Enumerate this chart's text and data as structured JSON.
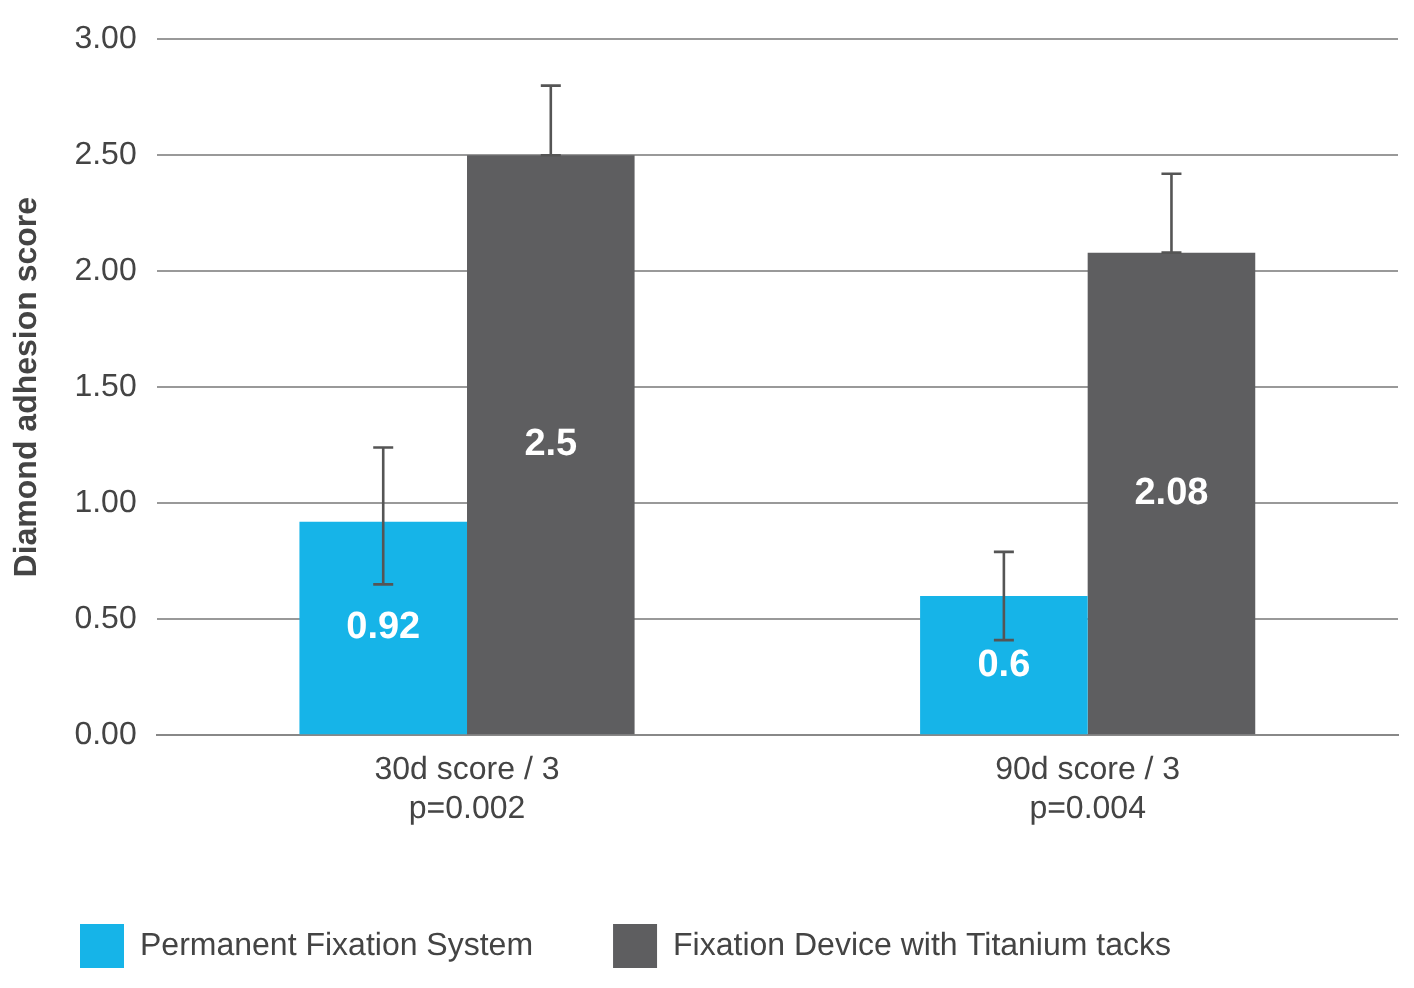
{
  "chart_data": {
    "type": "bar",
    "ylabel": "Diamond adhesion score",
    "categories": [
      "30d score / 3\np=0.002",
      "90d score / 3\np=0.004"
    ],
    "series": [
      {
        "name": "Permanent Fixation System",
        "color": "#16b4e8",
        "values": [
          0.92,
          0.6
        ],
        "errors": [
          [
            0.65,
            1.24
          ],
          [
            0.41,
            0.79
          ]
        ]
      },
      {
        "name": "Fixation Device with Titanium tacks",
        "color": "#5e5e60",
        "values": [
          2.5,
          2.08
        ],
        "errors": [
          [
            2.5,
            2.8
          ],
          [
            2.08,
            2.42
          ]
        ]
      }
    ],
    "ylim": [
      0,
      3
    ],
    "yticks": [
      {
        "value": 0,
        "label": "0.00"
      },
      {
        "value": 0.5,
        "label": "0.50"
      },
      {
        "value": 1,
        "label": "1.00"
      },
      {
        "value": 1.5,
        "label": "1.50"
      },
      {
        "value": 2,
        "label": "2.00"
      },
      {
        "value": 2.5,
        "label": "2.50"
      },
      {
        "value": 3,
        "label": "3.00"
      }
    ],
    "grid": "y",
    "legend": "bottom left",
    "data_labels": true
  }
}
